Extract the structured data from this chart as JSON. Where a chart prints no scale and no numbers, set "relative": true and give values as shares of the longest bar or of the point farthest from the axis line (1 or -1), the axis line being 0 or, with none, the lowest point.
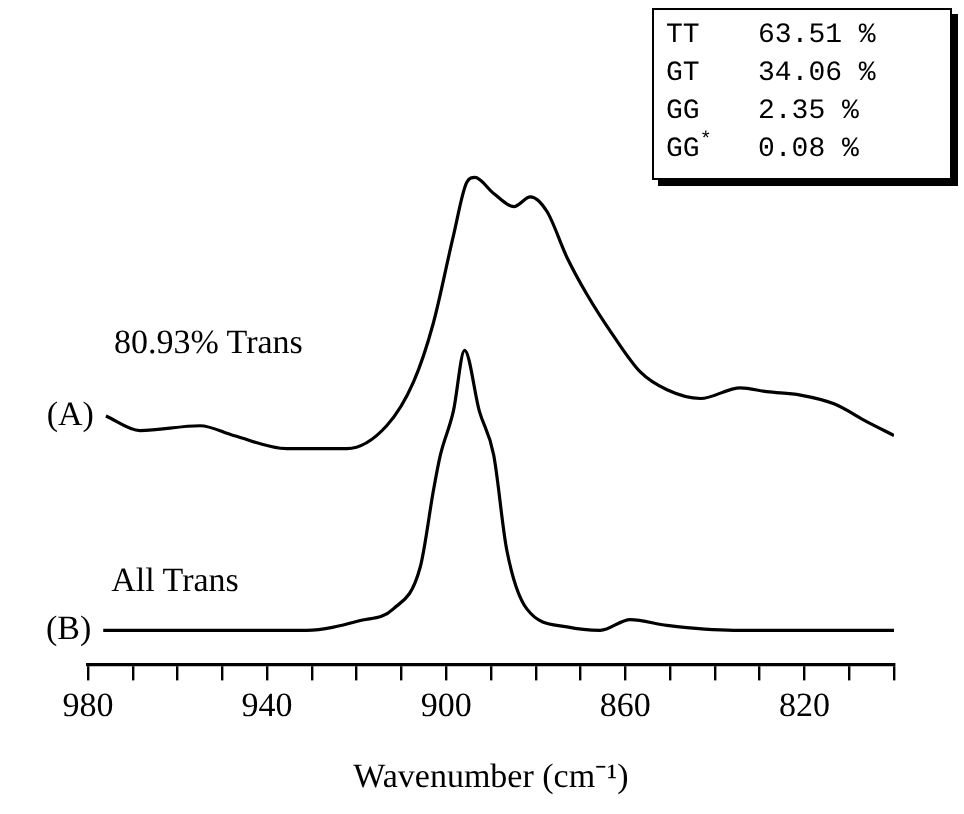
{
  "chart_data": {
    "type": "line",
    "relative": true,
    "xlabel": "Wavenumber (cm⁻¹)",
    "xlim": [
      980,
      800
    ],
    "xticks": [
      980,
      {
        "value": 970,
        "label": null
      },
      {
        "value": 960,
        "label": null
      },
      {
        "value": 950,
        "label": null
      },
      940,
      {
        "value": 930,
        "label": null
      },
      {
        "value": 920,
        "label": null
      },
      {
        "value": 910,
        "label": null
      },
      900,
      {
        "value": 890,
        "label": null
      },
      {
        "value": 880,
        "label": null
      },
      {
        "value": 870,
        "label": null
      },
      860,
      {
        "value": 850,
        "label": null
      },
      {
        "value": 840,
        "label": null
      },
      {
        "value": 830,
        "label": null
      },
      820,
      {
        "value": 810,
        "label": null
      },
      {
        "value": 800,
        "label": null
      }
    ],
    "tick_labels": "x",
    "grid": false,
    "legend": false,
    "marker": "none",
    "line_style": "solid",
    "series": [
      {
        "name": "80.93% Trans",
        "color": "#000000",
        "x": [
          976,
          968.4,
          955,
          947.5,
          935.6,
          922.2,
          913.3,
          907.3,
          902.9,
          898.4,
          895.4,
          893.6,
          889.4,
          884.9,
          881.2,
          877.5,
          873,
          868.6,
          862.6,
          856.6,
          850.7,
          843.2,
          834.3,
          828.4,
          820.9,
          813.4,
          806,
          800
        ],
        "values": [
          0.51,
          0.48,
          0.49,
          0.47,
          0.443,
          0.443,
          0.49,
          0.58,
          0.7,
          0.88,
          0.99,
          1,
          0.967,
          0.94,
          0.96,
          0.93,
          0.835,
          0.76,
          0.674,
          0.6,
          0.564,
          0.546,
          0.568,
          0.56,
          0.553,
          0.535,
          0.498,
          0.47
        ]
      },
      {
        "name": "All Trans",
        "color": "#000000",
        "x": [
          976.6,
          931.2,
          919.2,
          911.8,
          905.8,
          902.8,
          901.3,
          898.4,
          895.9,
          892.6,
          889.4,
          886.5,
          882,
          873,
          865.6,
          858.9,
          850.7,
          835.8,
          800
        ],
        "values": [
          0.07,
          0.07,
          0.09,
          0.114,
          0.2,
          0.36,
          0.43,
          0.52,
          0.645,
          0.52,
          0.43,
          0.236,
          0.114,
          0.077,
          0.07,
          0.092,
          0.08,
          0.07,
          0.07
        ]
      }
    ],
    "annotations": [
      "(A)",
      "(B)",
      "TT 63.51 %",
      "GT 34.06 %",
      "GG 2.35 %",
      "GG$^{*}$ 0.08 %"
    ]
  }
}
